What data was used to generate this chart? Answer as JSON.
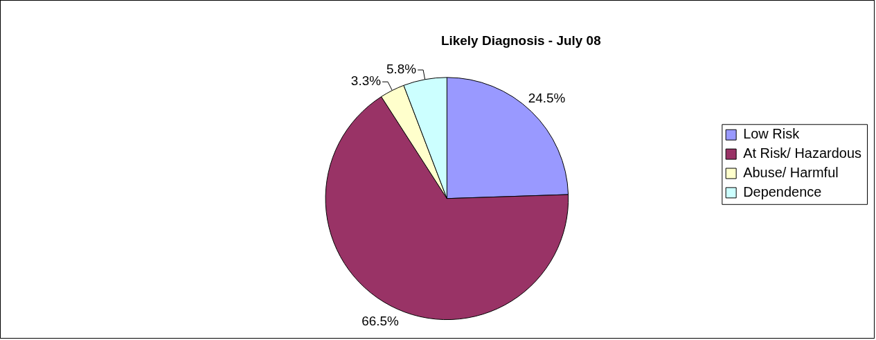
{
  "chart_data": {
    "type": "pie",
    "title": "Likely Diagnosis - July 08",
    "categories": [
      "Low Risk",
      "At Risk/ Hazardous",
      "Abuse/ Harmful",
      "Dependence"
    ],
    "values": [
      24.5,
      66.5,
      3.3,
      5.8
    ],
    "colors": [
      "#9999ff",
      "#993366",
      "#ffffcc",
      "#ccffff"
    ],
    "value_labels": [
      "24.5%",
      "66.5%",
      "3.3%",
      "5.8%"
    ],
    "legend": "right"
  }
}
